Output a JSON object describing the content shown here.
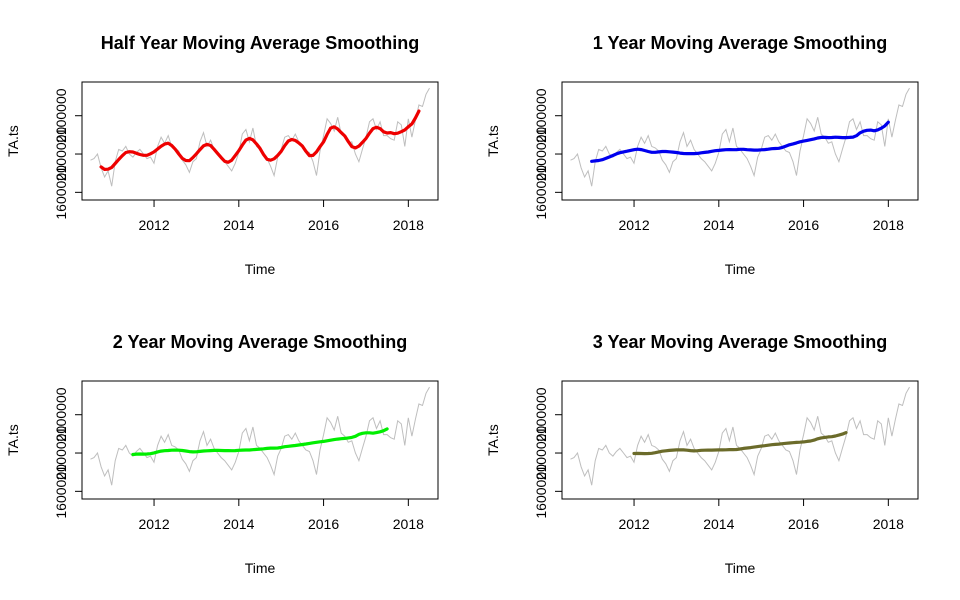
{
  "chart_data": [
    {
      "type": "line",
      "title": "Half Year Moving Average Smoothing",
      "xlabel": "Time",
      "ylabel": "TA.ts",
      "xticks": [
        "2012",
        "2014",
        "2016",
        "2018"
      ],
      "yticks": [
        "1600000",
        "2100000",
        "2100000"
      ],
      "series": [
        {
          "role": "raw",
          "color": "#bebebe"
        },
        {
          "role": "smoothed",
          "color": "#ee0000",
          "window_months": 6
        }
      ]
    },
    {
      "type": "line",
      "title": "1 Year Moving Average Smoothing",
      "xlabel": "Time",
      "ylabel": "TA.ts",
      "xticks": [
        "2012",
        "2014",
        "2016",
        "2018"
      ],
      "yticks": [
        "1600000",
        "2100000",
        "2100000"
      ],
      "series": [
        {
          "role": "raw",
          "color": "#bebebe"
        },
        {
          "role": "smoothed",
          "color": "#0000ee",
          "window_months": 12
        }
      ]
    },
    {
      "type": "line",
      "title": "2 Year Moving Average Smoothing",
      "xlabel": "Time",
      "ylabel": "TA.ts",
      "xticks": [
        "2012",
        "2014",
        "2016",
        "2018"
      ],
      "yticks": [
        "1600000",
        "2100000",
        "2100000"
      ],
      "series": [
        {
          "role": "raw",
          "color": "#bebebe"
        },
        {
          "role": "smoothed",
          "color": "#00ee00",
          "window_months": 24
        }
      ]
    },
    {
      "type": "line",
      "title": "3 Year Moving Average Smoothing",
      "xlabel": "Time",
      "ylabel": "TA.ts",
      "xticks": [
        "2012",
        "2014",
        "2016",
        "2018"
      ],
      "yticks": [
        "1600000",
        "2100000",
        "2100000"
      ],
      "series": [
        {
          "role": "raw",
          "color": "#bebebe"
        },
        {
          "role": "smoothed",
          "color": "#6b6b2a",
          "window_months": 36
        }
      ]
    }
  ],
  "shared": {
    "start_year": 2010,
    "start_month": 7,
    "xlim": [
      2010.3,
      2018.7
    ],
    "ylim": [
      1550000,
      2320000
    ],
    "raw_values": [
      1810000,
      1820000,
      1850000,
      1760000,
      1700000,
      1740000,
      1640000,
      1800000,
      1880000,
      1870000,
      1900000,
      1850000,
      1830000,
      1860000,
      1880000,
      1850000,
      1820000,
      1830000,
      1790000,
      1900000,
      1960000,
      1920000,
      1970000,
      1900000,
      1890000,
      1870000,
      1810000,
      1780000,
      1730000,
      1800000,
      1820000,
      1930000,
      1990000,
      1900000,
      1940000,
      1880000,
      1850000,
      1820000,
      1800000,
      1770000,
      1740000,
      1790000,
      1860000,
      1980000,
      2010000,
      1930000,
      2020000,
      1900000,
      1880000,
      1850000,
      1820000,
      1770000,
      1710000,
      1830000,
      1880000,
      1960000,
      1970000,
      1940000,
      1980000,
      1930000,
      1900000,
      1870000,
      1860000,
      1800000,
      1710000,
      1870000,
      1970000,
      2080000,
      2050000,
      2000000,
      2090000,
      1980000,
      1960000,
      1920000,
      1930000,
      1850000,
      1800000,
      1880000,
      1960000,
      2060000,
      2080000,
      2010000,
      2060000,
      1970000,
      1970000,
      1950000,
      1940000,
      2060000,
      2040000,
      1900000,
      2080000,
      1960000,
      2070000,
      2170000,
      2160000,
      2240000,
      2280000
    ]
  }
}
